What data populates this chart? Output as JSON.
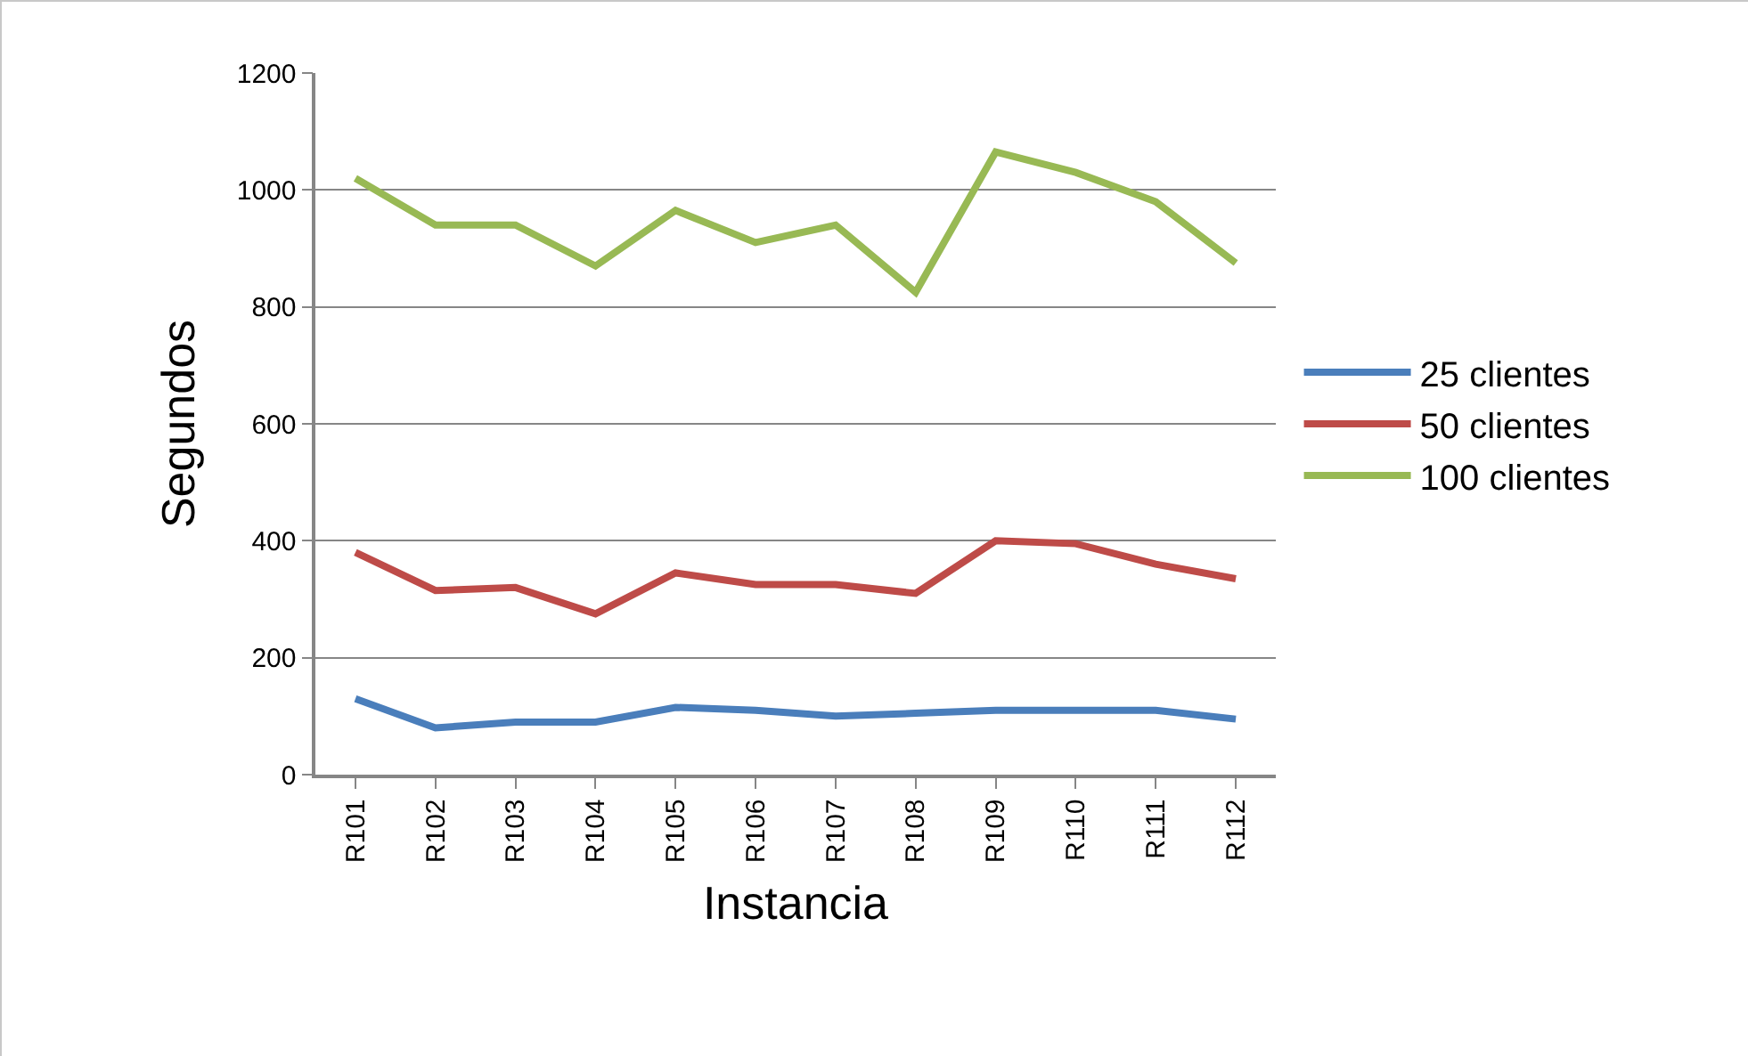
{
  "chart_data": {
    "type": "line",
    "xlabel": "Instancia",
    "ylabel": "Segundos",
    "categories": [
      "R101",
      "R102",
      "R103",
      "R104",
      "R105",
      "R106",
      "R107",
      "R108",
      "R109",
      "R110",
      "R111",
      "R112"
    ],
    "series": [
      {
        "name": "25 clientes",
        "color": "#4a7ebb",
        "values": [
          130,
          80,
          90,
          90,
          115,
          110,
          100,
          105,
          110,
          110,
          110,
          95
        ]
      },
      {
        "name": "50 clientes",
        "color": "#be4b48",
        "values": [
          380,
          315,
          320,
          275,
          345,
          325,
          325,
          310,
          400,
          395,
          360,
          335
        ]
      },
      {
        "name": "100 clientes",
        "color": "#98b954",
        "values": [
          1020,
          940,
          940,
          870,
          965,
          910,
          940,
          825,
          1065,
          1030,
          980,
          875
        ]
      }
    ],
    "ylim": [
      0,
      1200
    ],
    "yticks": [
      0,
      200,
      400,
      600,
      800,
      1000,
      1200
    ],
    "grid": "y",
    "legend": "right",
    "marker": "none",
    "line_style": "solid"
  }
}
